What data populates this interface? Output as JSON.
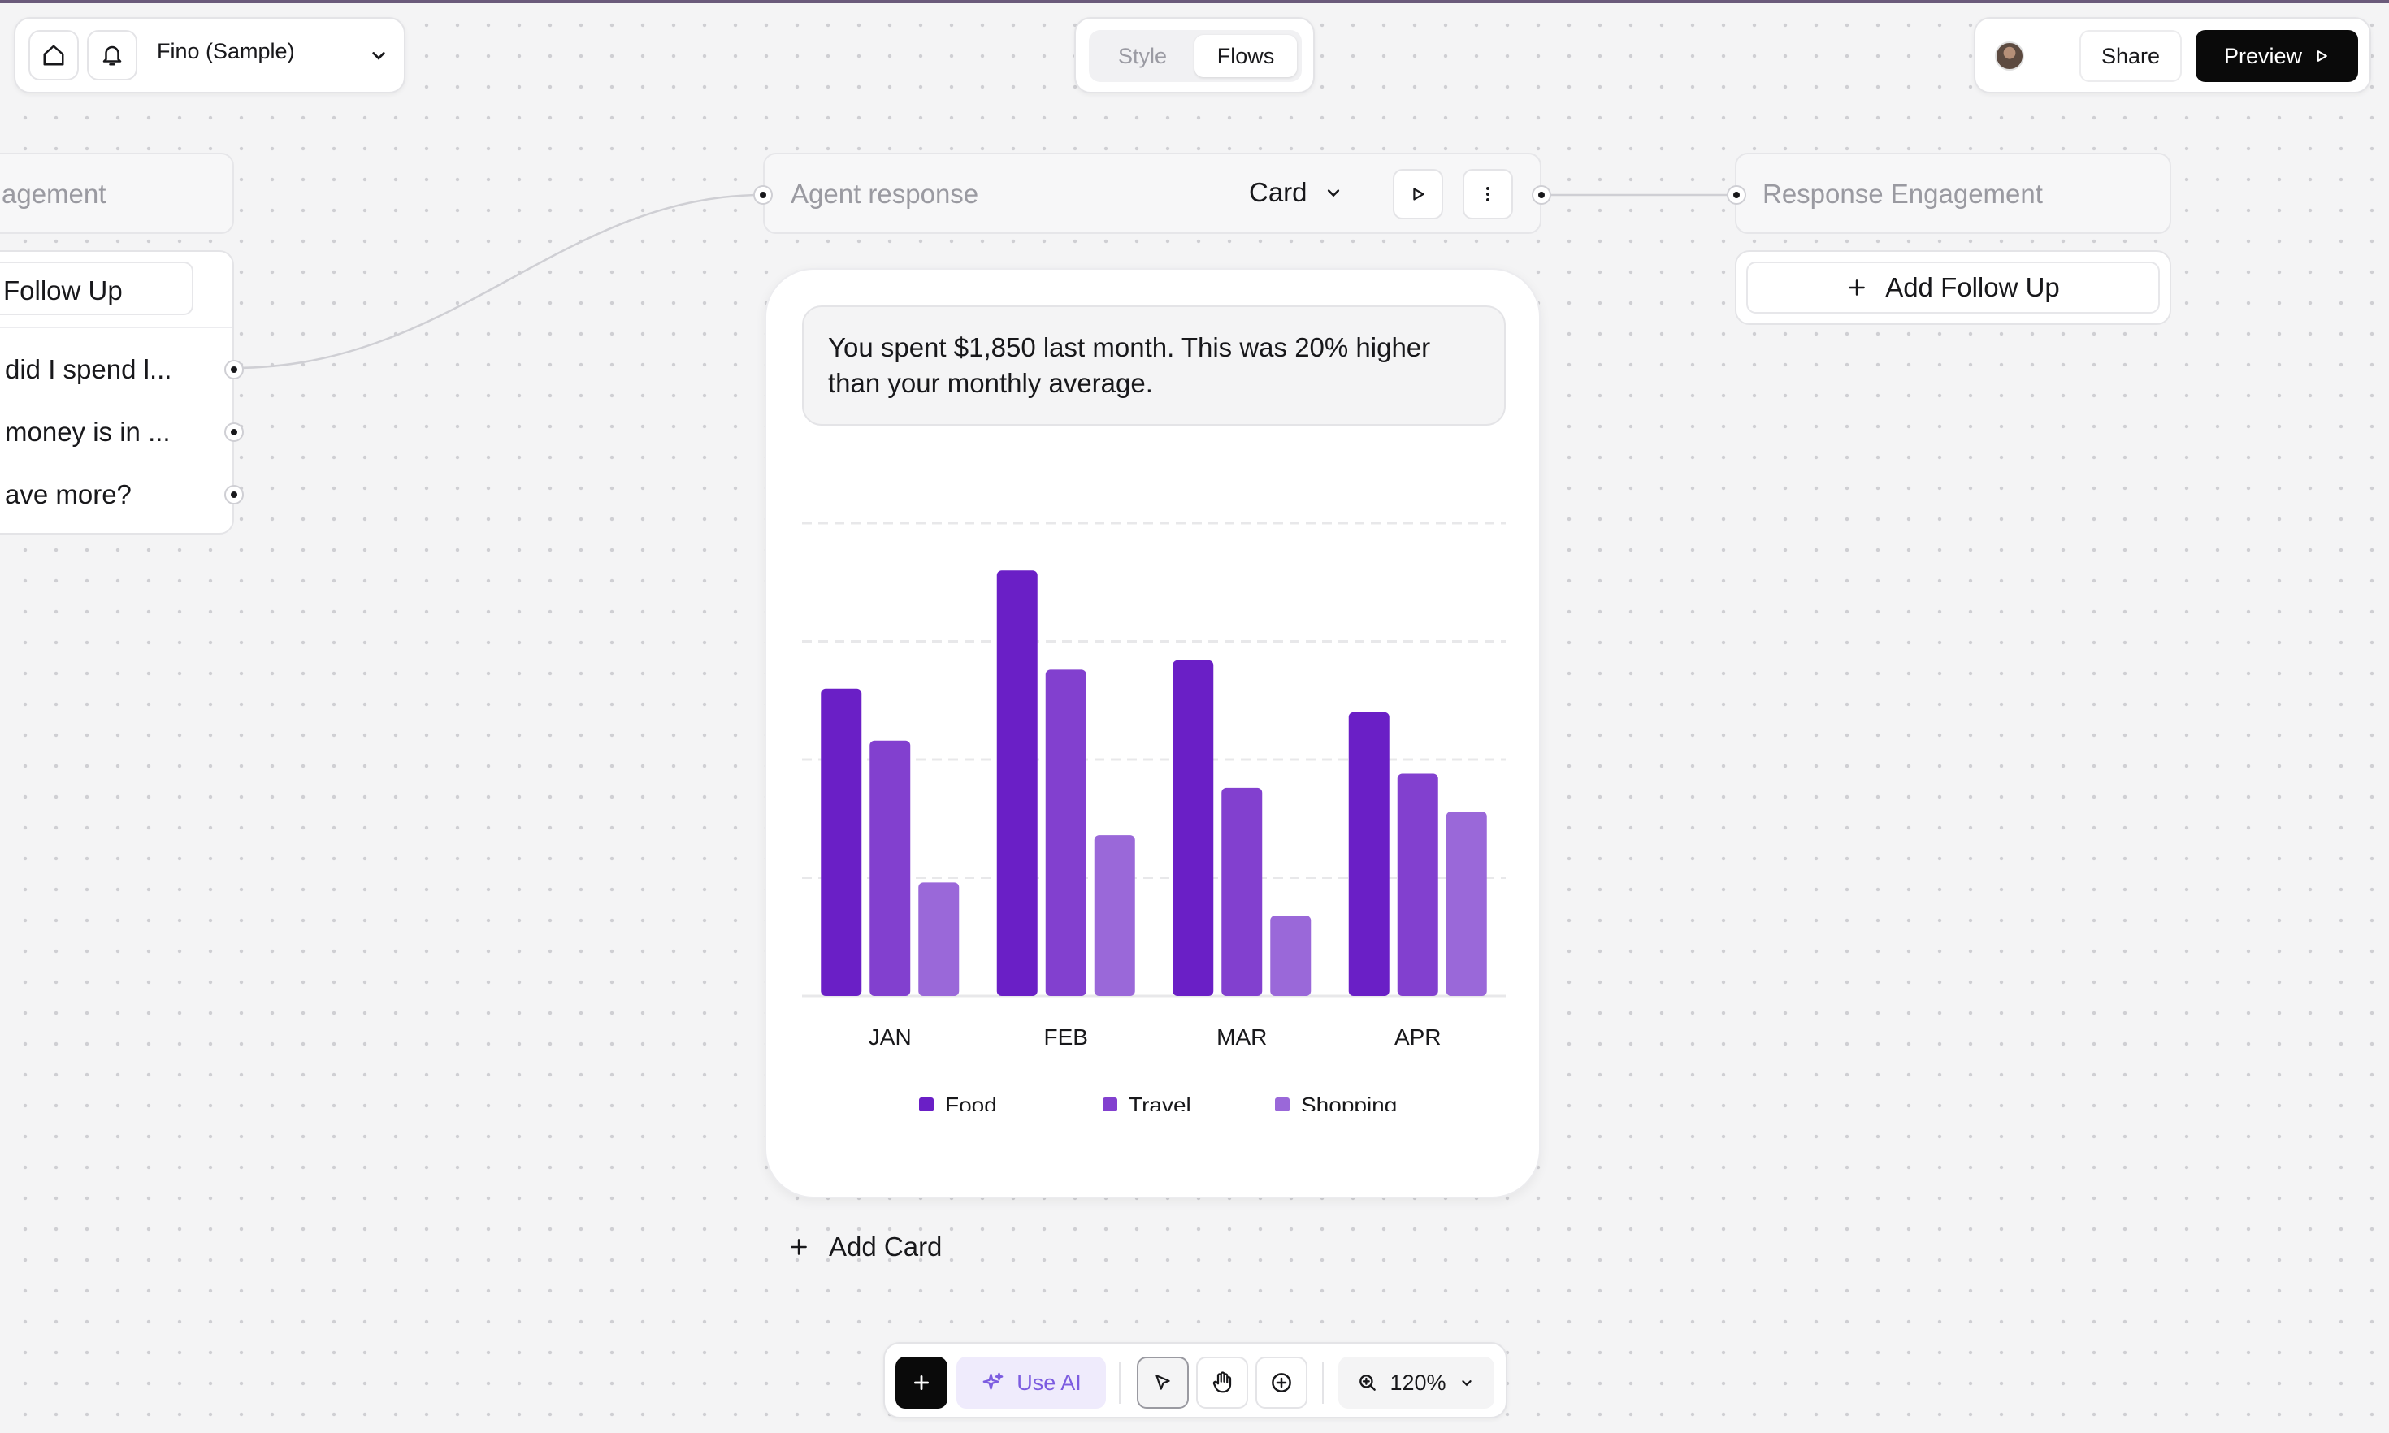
{
  "header": {
    "project_name": "Fino (Sample)",
    "tabs": [
      {
        "label": "Style"
      },
      {
        "label": "Flows"
      }
    ],
    "active_tab": "Flows",
    "share_label": "Share",
    "preview_label": "Preview"
  },
  "left_node": {
    "title": "agement",
    "follow_up_label": "Follow Up",
    "questions": [
      "did I spend l...",
      "money is in ...",
      "ave more?"
    ]
  },
  "agent_node": {
    "title": "Agent response",
    "type_label": "Card",
    "message": "You spent $1,850 last month. This was 20% higher than your monthly average."
  },
  "engagement_node": {
    "title": "Response Engagement",
    "add_follow_up_label": "Add Follow Up"
  },
  "add_card_label": "Add Card",
  "toolbar": {
    "use_ai_label": "Use AI",
    "zoom_label": "120%"
  },
  "colors": {
    "food": "#6a1fc6",
    "travel": "#8240cf",
    "shopping": "#9a68d9",
    "accent": "#7c5ce0"
  },
  "chart_data": {
    "type": "bar",
    "categories": [
      "JAN",
      "FEB",
      "MAR",
      "APR"
    ],
    "series": [
      {
        "name": "Food",
        "values": [
          65,
          90,
          71,
          60
        ]
      },
      {
        "name": "Travel",
        "values": [
          54,
          69,
          44,
          47
        ]
      },
      {
        "name": "Shopping",
        "values": [
          24,
          34,
          17,
          39
        ]
      }
    ],
    "ylim": [
      0,
      100
    ],
    "grid": true,
    "legend": "bottom"
  }
}
